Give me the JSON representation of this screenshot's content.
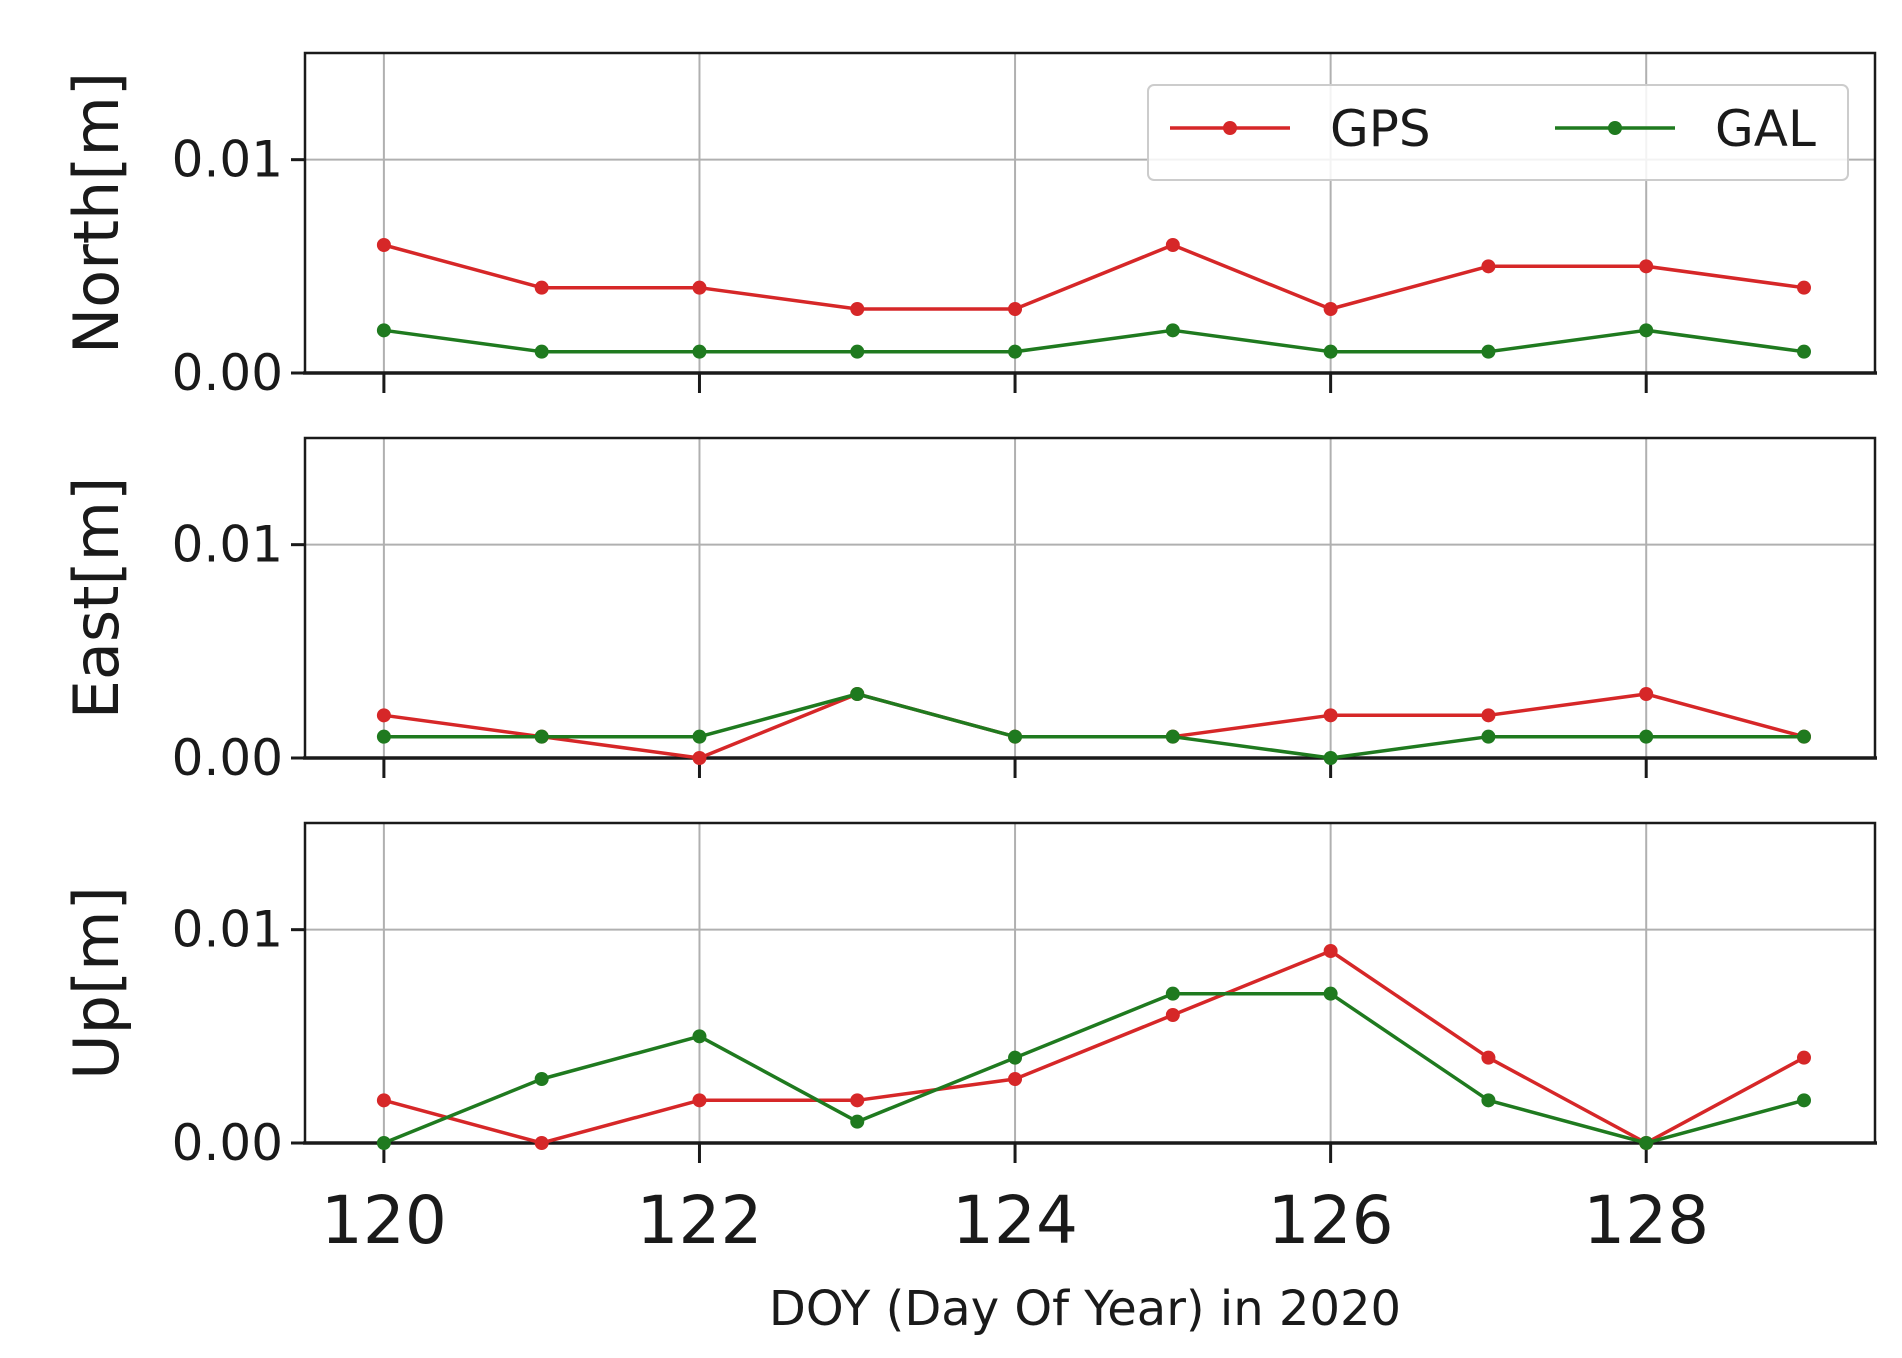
{
  "chart_data": {
    "type": "line",
    "xlabel": "DOY (Day Of Year) in 2020",
    "x": [
      120,
      121,
      122,
      123,
      124,
      125,
      126,
      127,
      128,
      129
    ],
    "xlim": [
      119.5,
      129.45
    ],
    "xticks": [
      120,
      122,
      124,
      126,
      128
    ],
    "ylim": [
      0,
      0.015
    ],
    "yticks": [
      0.0,
      0.01
    ],
    "ytick_labels": [
      "0.00",
      "0.01"
    ],
    "grid": true,
    "legend": {
      "location": "top-right",
      "columns": 2,
      "entries": [
        "GPS",
        "GAL"
      ]
    },
    "colors": {
      "GPS": "#d62728",
      "GAL": "#1f7a1f"
    },
    "panels": [
      {
        "ylabel": "North[m]",
        "series": [
          {
            "name": "GPS",
            "values": [
              0.006,
              0.004,
              0.004,
              0.003,
              0.003,
              0.006,
              0.003,
              0.005,
              0.005,
              0.004
            ]
          },
          {
            "name": "GAL",
            "values": [
              0.002,
              0.001,
              0.001,
              0.001,
              0.001,
              0.002,
              0.001,
              0.001,
              0.002,
              0.001
            ]
          }
        ]
      },
      {
        "ylabel": "East[m]",
        "series": [
          {
            "name": "GPS",
            "values": [
              0.002,
              0.001,
              0.0,
              0.003,
              0.001,
              0.001,
              0.002,
              0.002,
              0.003,
              0.001
            ]
          },
          {
            "name": "GAL",
            "values": [
              0.001,
              0.001,
              0.001,
              0.003,
              0.001,
              0.001,
              0.0,
              0.001,
              0.001,
              0.001
            ]
          }
        ]
      },
      {
        "ylabel": "Up[m]",
        "series": [
          {
            "name": "GPS",
            "values": [
              0.002,
              0.0,
              0.002,
              0.002,
              0.003,
              0.006,
              0.009,
              0.004,
              0.0,
              0.004
            ]
          },
          {
            "name": "GAL",
            "values": [
              0.0,
              0.003,
              0.005,
              0.001,
              0.004,
              0.007,
              0.007,
              0.002,
              0.0,
              0.002
            ]
          }
        ]
      }
    ]
  }
}
